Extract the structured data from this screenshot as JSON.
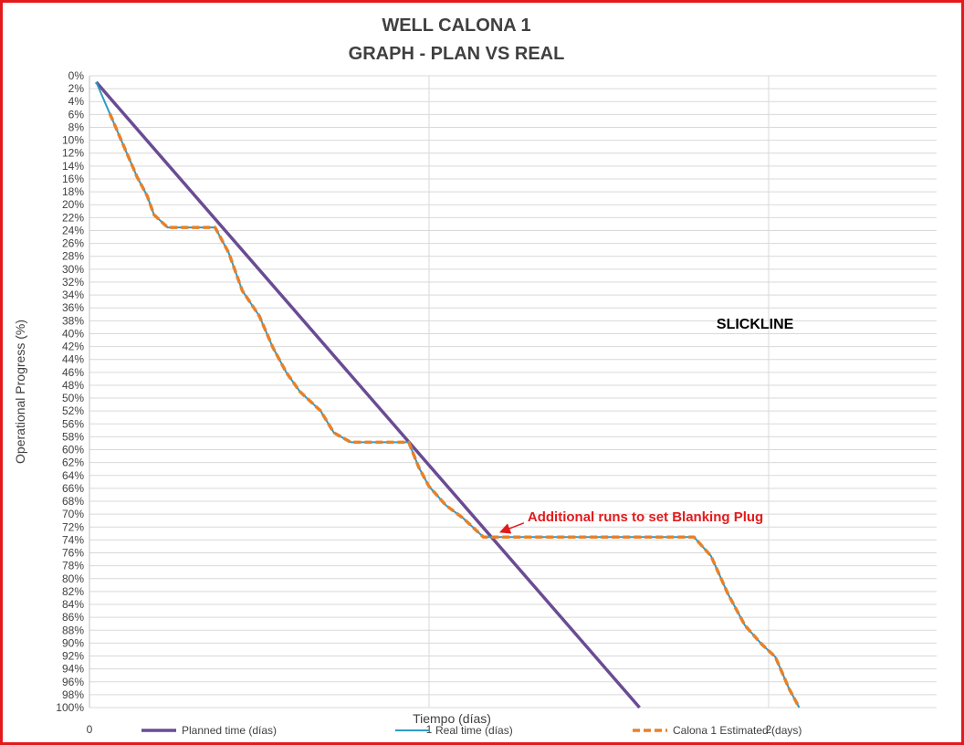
{
  "chart_data": {
    "type": "line",
    "title": [
      "WELL CALONA 1",
      "GRAPH  - PLAN VS REAL"
    ],
    "xlabel": "Tiempo (días)",
    "ylabel": "Operational Progress (%)",
    "xlim": [
      0,
      2.5
    ],
    "ylim": [
      0,
      100
    ],
    "y_inverted": true,
    "x_ticks": [
      0,
      1,
      2
    ],
    "y_ticks": [
      "0%",
      "2%",
      "4%",
      "6%",
      "8%",
      "10%",
      "12%",
      "14%",
      "16%",
      "18%",
      "20%",
      "22%",
      "24%",
      "26%",
      "28%",
      "30%",
      "32%",
      "34%",
      "36%",
      "38%",
      "40%",
      "42%",
      "44%",
      "46%",
      "48%",
      "50%",
      "52%",
      "56%",
      "58%",
      "60%",
      "62%",
      "64%",
      "66%",
      "68%",
      "70%",
      "72%",
      "74%",
      "76%",
      "78%",
      "80%",
      "82%",
      "84%",
      "86%",
      "88%",
      "90%",
      "92%",
      "94%",
      "96%",
      "98%",
      "100%"
    ],
    "grid": true,
    "legend_position": "bottom",
    "series": [
      {
        "name": "Planned time (días)",
        "color": "#6a4c93",
        "style": "solid",
        "points": [
          [
            0.02,
            1
          ],
          [
            1.62,
            100
          ]
        ]
      },
      {
        "name": "Real time (días)",
        "color": "#2e9bc4",
        "style": "solid",
        "points": [
          [
            0.02,
            1
          ],
          [
            0.06,
            6
          ],
          [
            0.1,
            11
          ],
          [
            0.14,
            16
          ],
          [
            0.17,
            19
          ],
          [
            0.19,
            22
          ],
          [
            0.23,
            24
          ],
          [
            0.29,
            24
          ],
          [
            0.37,
            24
          ],
          [
            0.41,
            28
          ],
          [
            0.45,
            34
          ],
          [
            0.5,
            38
          ],
          [
            0.54,
            43
          ],
          [
            0.58,
            47
          ],
          [
            0.62,
            50
          ],
          [
            0.68,
            53
          ],
          [
            0.72,
            56.5
          ],
          [
            0.77,
            58
          ],
          [
            0.84,
            58
          ],
          [
            0.94,
            58
          ],
          [
            0.97,
            62
          ],
          [
            1.0,
            65
          ],
          [
            1.05,
            68
          ],
          [
            1.1,
            70
          ],
          [
            1.16,
            73
          ],
          [
            1.25,
            73
          ],
          [
            1.4,
            73
          ],
          [
            1.55,
            73
          ],
          [
            1.78,
            73
          ],
          [
            1.83,
            76
          ],
          [
            1.88,
            82
          ],
          [
            1.93,
            87
          ],
          [
            1.98,
            90
          ],
          [
            2.02,
            92
          ],
          [
            2.06,
            97
          ],
          [
            2.09,
            100
          ]
        ]
      },
      {
        "name": "Calona 1 Estimated (days)",
        "color": "#e8812a",
        "style": "dashed",
        "points": [
          [
            0.06,
            6
          ],
          [
            0.1,
            11
          ],
          [
            0.14,
            16
          ],
          [
            0.17,
            19
          ],
          [
            0.19,
            22
          ],
          [
            0.23,
            24
          ],
          [
            0.29,
            24
          ],
          [
            0.37,
            24
          ],
          [
            0.41,
            28
          ],
          [
            0.45,
            34
          ],
          [
            0.5,
            38
          ],
          [
            0.54,
            43
          ],
          [
            0.58,
            47
          ],
          [
            0.62,
            50
          ],
          [
            0.68,
            53
          ],
          [
            0.72,
            56.5
          ],
          [
            0.77,
            58
          ],
          [
            0.84,
            58
          ],
          [
            0.94,
            58
          ],
          [
            0.97,
            62
          ],
          [
            1.0,
            65
          ],
          [
            1.05,
            68
          ],
          [
            1.1,
            70
          ],
          [
            1.16,
            73
          ],
          [
            1.25,
            73
          ],
          [
            1.4,
            73
          ],
          [
            1.55,
            73
          ],
          [
            1.78,
            73
          ],
          [
            1.83,
            76
          ],
          [
            1.88,
            82
          ],
          [
            1.93,
            87
          ],
          [
            1.98,
            90
          ],
          [
            2.02,
            92
          ],
          [
            2.06,
            97
          ],
          [
            2.09,
            100
          ]
        ]
      }
    ],
    "annotations": [
      {
        "text": "SLICKLINE",
        "x": 1.96,
        "y": 40
      },
      {
        "text": "Additional runs to set Blanking Plug",
        "x": 1.29,
        "y": 70.5,
        "arrow_to": [
          1.2,
          72.5
        ],
        "color": "#e31a1c"
      }
    ]
  }
}
